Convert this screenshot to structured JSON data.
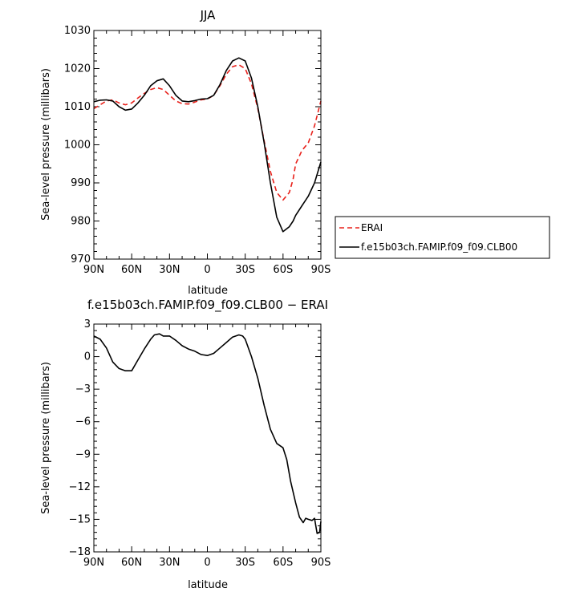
{
  "chart_data": [
    {
      "type": "line",
      "title": "JJA",
      "xlabel": "latitude",
      "ylabel": "Sea-level pressure (millibars)",
      "xlim": [
        90,
        -90
      ],
      "ylim": [
        970,
        1030
      ],
      "x_ticks": [
        90,
        60,
        30,
        0,
        -30,
        -60,
        -90
      ],
      "x_tick_labels": [
        "90N",
        "60N",
        "30N",
        "0",
        "30S",
        "60S",
        "90S"
      ],
      "y_ticks": [
        970,
        980,
        990,
        1000,
        1010,
        1020,
        1030
      ],
      "y_tick_labels": [
        "970",
        "980",
        "990",
        "1000",
        "1010",
        "1020",
        "1030"
      ],
      "grid": false,
      "legend_placement": "right-outside",
      "x": [
        90,
        85,
        80,
        75,
        70,
        65,
        60,
        55,
        50,
        45,
        40,
        35,
        30,
        25,
        20,
        15,
        10,
        5,
        0,
        -5,
        -10,
        -15,
        -20,
        -25,
        -30,
        -35,
        -40,
        -45,
        -50,
        -55,
        -60,
        -65,
        -68,
        -70,
        -75,
        -80,
        -85,
        -90
      ],
      "series": [
        {
          "name": "ERAI",
          "color": "#e8211b",
          "dash": "dashed",
          "values": [
            1009.5,
            1010.5,
            1011.5,
            1011.8,
            1011.0,
            1010.5,
            1011.0,
            1012.3,
            1013.5,
            1014.5,
            1015.0,
            1014.5,
            1013.0,
            1011.5,
            1010.8,
            1010.7,
            1011.2,
            1011.8,
            1012.0,
            1013.0,
            1015.5,
            1018.5,
            1020.5,
            1021.0,
            1020.0,
            1016.0,
            1009.5,
            1001.0,
            993.0,
            987.5,
            985.5,
            987.5,
            991.0,
            995.0,
            998.5,
            1000.5,
            1005.0,
            1011.5
          ]
        },
        {
          "name": "f.e15b03ch.FAMIP.f09_f09.CLB00",
          "color": "#000000",
          "dash": "solid",
          "values": [
            1011.3,
            1011.7,
            1011.8,
            1011.5,
            1010.0,
            1009.1,
            1009.4,
            1011.0,
            1013.0,
            1015.5,
            1016.8,
            1017.3,
            1015.5,
            1013.0,
            1011.5,
            1011.3,
            1011.6,
            1012.0,
            1012.1,
            1013.0,
            1015.8,
            1019.5,
            1022.0,
            1022.8,
            1022.0,
            1017.5,
            1010.0,
            1000.5,
            990.0,
            981.0,
            977.2,
            978.5,
            980.0,
            981.5,
            984.0,
            986.5,
            990.0,
            995.5
          ]
        }
      ]
    },
    {
      "type": "line",
      "title": "f.e15b03ch.FAMIP.f09_f09.CLB00 − ERAI",
      "xlabel": "latitude",
      "ylabel": "Sea-level pressure (millibars)",
      "xlim": [
        90,
        -90
      ],
      "ylim": [
        -18,
        3
      ],
      "x_ticks": [
        90,
        60,
        30,
        0,
        -30,
        -60,
        -90
      ],
      "x_tick_labels": [
        "90N",
        "60N",
        "30N",
        "0",
        "30S",
        "60S",
        "90S"
      ],
      "y_ticks": [
        -18,
        -15,
        -12,
        -9,
        -6,
        -3,
        0,
        3
      ],
      "y_tick_labels": [
        "−18",
        "−15",
        "−12",
        "−9",
        "−6",
        "−3",
        "0",
        "3"
      ],
      "grid": false,
      "x": [
        90,
        85,
        80,
        75,
        70,
        65,
        60,
        55,
        50,
        45,
        42,
        38,
        35,
        30,
        25,
        20,
        15,
        10,
        5,
        0,
        -5,
        -10,
        -15,
        -20,
        -25,
        -28,
        -30,
        -35,
        -40,
        -45,
        -50,
        -55,
        -60,
        -63,
        -66,
        -70,
        -73,
        -76,
        -78,
        -80,
        -83,
        -85,
        -87,
        -89,
        -90
      ],
      "series": [
        {
          "name": "",
          "color": "#000000",
          "dash": "solid",
          "values": [
            1.9,
            1.6,
            0.8,
            -0.5,
            -1.1,
            -1.3,
            -1.3,
            -0.3,
            0.7,
            1.6,
            2.0,
            2.1,
            1.9,
            1.9,
            1.5,
            1.0,
            0.7,
            0.5,
            0.2,
            0.1,
            0.3,
            0.8,
            1.3,
            1.8,
            2.0,
            1.9,
            1.6,
            0.0,
            -2.0,
            -4.5,
            -6.7,
            -8.0,
            -8.4,
            -9.5,
            -11.5,
            -13.5,
            -14.8,
            -15.3,
            -14.9,
            -15.0,
            -15.1,
            -14.9,
            -16.3,
            -16.2,
            -15.2
          ]
        }
      ]
    }
  ],
  "legend": {
    "entries": [
      {
        "label": "ERAI",
        "color": "#e8211b",
        "dash": "dashed"
      },
      {
        "label": "f.e15b03ch.FAMIP.f09_f09.CLB00",
        "color": "#000000",
        "dash": "solid"
      }
    ]
  }
}
